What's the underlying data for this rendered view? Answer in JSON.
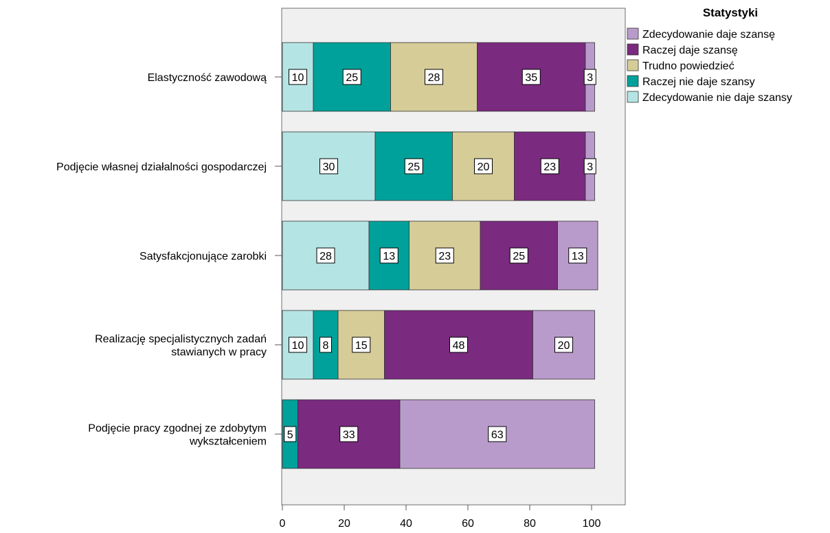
{
  "chart_data": {
    "type": "bar",
    "orientation": "horizontal",
    "stacked": true,
    "legend_title": "Statystyki",
    "legend_position": "top-right",
    "categories": [
      [
        "Elastyczność zawodową"
      ],
      [
        "Podjęcie własnej działalności gospodarczej"
      ],
      [
        "Satysfakcjonujące zarobki"
      ],
      [
        "Realizację specjalistycznych zadań",
        "stawianych w pracy"
      ],
      [
        "Podjęcie pracy zgodnej ze zdobytym",
        "wykształceniem"
      ]
    ],
    "series": [
      {
        "name": "Zdecydowanie nie daje szansy",
        "color": "#b5e4e4",
        "values": [
          10,
          30,
          28,
          10,
          0
        ]
      },
      {
        "name": "Raczej nie daje szansy",
        "color": "#00a19a",
        "values": [
          25,
          25,
          13,
          8,
          5
        ]
      },
      {
        "name": "Trudno powiedzieć",
        "color": "#d6cc98",
        "values": [
          28,
          20,
          23,
          15,
          0
        ]
      },
      {
        "name": "Raczej daje szansę",
        "color": "#7a2a7f",
        "values": [
          35,
          23,
          25,
          48,
          33
        ]
      },
      {
        "name": "Zdecydowanie daje szansę",
        "color": "#b99bcb",
        "values": [
          3,
          3,
          13,
          20,
          63
        ]
      }
    ],
    "legend_order": [
      "Zdecydowanie daje szansę",
      "Raczej daje szansę",
      "Trudno powiedzieć",
      "Raczej nie daje szansy",
      "Zdecydowanie nie daje szansy"
    ],
    "xlim": [
      0,
      110
    ],
    "xticks": [
      0,
      20,
      40,
      60,
      80,
      100
    ],
    "xlabel": "",
    "ylabel": "",
    "grid": false,
    "plot_background": "#f0f0f0"
  }
}
